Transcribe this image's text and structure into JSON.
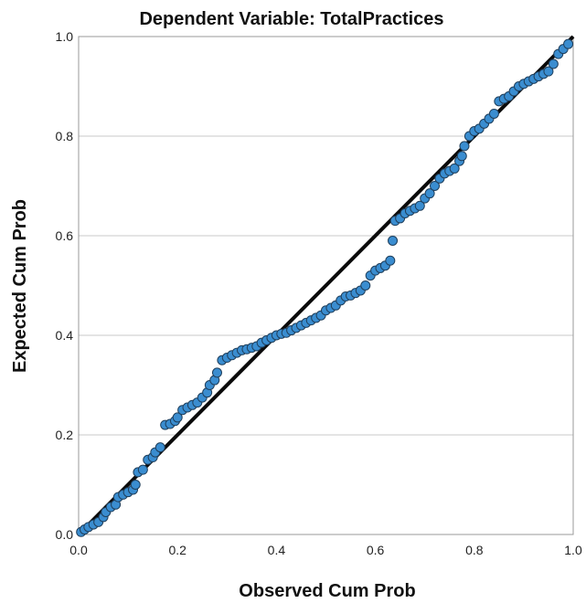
{
  "chart_data": {
    "type": "scatter",
    "title": "Dependent Variable: TotalPractices",
    "xlabel": "Observed Cum Prob",
    "ylabel": "Expected Cum Prob",
    "xlim": [
      0,
      1
    ],
    "ylim": [
      0,
      1
    ],
    "x_ticks": [
      "0.0",
      "0.2",
      "0.4",
      "0.6",
      "0.8",
      "1.0"
    ],
    "y_ticks": [
      "0.0",
      "0.2",
      "0.4",
      "0.6",
      "0.8",
      "1.0"
    ],
    "grid": "horizontal",
    "reference_line": [
      [
        0,
        0
      ],
      [
        1,
        1
      ]
    ],
    "colors": {
      "point_fill": "#3a8dd0",
      "point_edge": "#1f3f5c",
      "line": "#0a0a0a",
      "grid": "#c8c8c8"
    },
    "points": [
      [
        0.005,
        0.005
      ],
      [
        0.012,
        0.01
      ],
      [
        0.02,
        0.015
      ],
      [
        0.03,
        0.02
      ],
      [
        0.04,
        0.025
      ],
      [
        0.05,
        0.035
      ],
      [
        0.055,
        0.045
      ],
      [
        0.065,
        0.055
      ],
      [
        0.075,
        0.06
      ],
      [
        0.08,
        0.075
      ],
      [
        0.09,
        0.08
      ],
      [
        0.1,
        0.085
      ],
      [
        0.11,
        0.09
      ],
      [
        0.115,
        0.1
      ],
      [
        0.12,
        0.125
      ],
      [
        0.13,
        0.13
      ],
      [
        0.14,
        0.15
      ],
      [
        0.15,
        0.155
      ],
      [
        0.155,
        0.165
      ],
      [
        0.165,
        0.175
      ],
      [
        0.175,
        0.22
      ],
      [
        0.185,
        0.222
      ],
      [
        0.195,
        0.228
      ],
      [
        0.2,
        0.235
      ],
      [
        0.21,
        0.25
      ],
      [
        0.22,
        0.255
      ],
      [
        0.23,
        0.26
      ],
      [
        0.24,
        0.265
      ],
      [
        0.25,
        0.275
      ],
      [
        0.26,
        0.285
      ],
      [
        0.265,
        0.3
      ],
      [
        0.275,
        0.31
      ],
      [
        0.28,
        0.325
      ],
      [
        0.29,
        0.35
      ],
      [
        0.3,
        0.355
      ],
      [
        0.31,
        0.36
      ],
      [
        0.32,
        0.365
      ],
      [
        0.33,
        0.37
      ],
      [
        0.34,
        0.372
      ],
      [
        0.35,
        0.375
      ],
      [
        0.36,
        0.378
      ],
      [
        0.37,
        0.385
      ],
      [
        0.38,
        0.39
      ],
      [
        0.39,
        0.395
      ],
      [
        0.4,
        0.4
      ],
      [
        0.41,
        0.403
      ],
      [
        0.42,
        0.405
      ],
      [
        0.43,
        0.41
      ],
      [
        0.44,
        0.415
      ],
      [
        0.45,
        0.42
      ],
      [
        0.46,
        0.425
      ],
      [
        0.47,
        0.43
      ],
      [
        0.48,
        0.435
      ],
      [
        0.49,
        0.44
      ],
      [
        0.5,
        0.45
      ],
      [
        0.51,
        0.455
      ],
      [
        0.52,
        0.46
      ],
      [
        0.53,
        0.47
      ],
      [
        0.54,
        0.478
      ],
      [
        0.55,
        0.48
      ],
      [
        0.56,
        0.485
      ],
      [
        0.57,
        0.49
      ],
      [
        0.58,
        0.5
      ],
      [
        0.59,
        0.52
      ],
      [
        0.6,
        0.53
      ],
      [
        0.61,
        0.535
      ],
      [
        0.62,
        0.54
      ],
      [
        0.63,
        0.55
      ],
      [
        0.635,
        0.59
      ],
      [
        0.64,
        0.63
      ],
      [
        0.65,
        0.635
      ],
      [
        0.66,
        0.645
      ],
      [
        0.67,
        0.65
      ],
      [
        0.68,
        0.655
      ],
      [
        0.69,
        0.66
      ],
      [
        0.7,
        0.675
      ],
      [
        0.71,
        0.685
      ],
      [
        0.72,
        0.7
      ],
      [
        0.73,
        0.715
      ],
      [
        0.74,
        0.725
      ],
      [
        0.75,
        0.73
      ],
      [
        0.76,
        0.735
      ],
      [
        0.77,
        0.75
      ],
      [
        0.775,
        0.76
      ],
      [
        0.78,
        0.78
      ],
      [
        0.79,
        0.8
      ],
      [
        0.8,
        0.81
      ],
      [
        0.81,
        0.815
      ],
      [
        0.82,
        0.825
      ],
      [
        0.83,
        0.835
      ],
      [
        0.84,
        0.845
      ],
      [
        0.85,
        0.87
      ],
      [
        0.86,
        0.875
      ],
      [
        0.87,
        0.88
      ],
      [
        0.88,
        0.89
      ],
      [
        0.89,
        0.9
      ],
      [
        0.9,
        0.905
      ],
      [
        0.91,
        0.91
      ],
      [
        0.92,
        0.915
      ],
      [
        0.93,
        0.92
      ],
      [
        0.94,
        0.925
      ],
      [
        0.95,
        0.93
      ],
      [
        0.96,
        0.945
      ],
      [
        0.97,
        0.965
      ],
      [
        0.98,
        0.975
      ],
      [
        0.99,
        0.985
      ]
    ]
  }
}
